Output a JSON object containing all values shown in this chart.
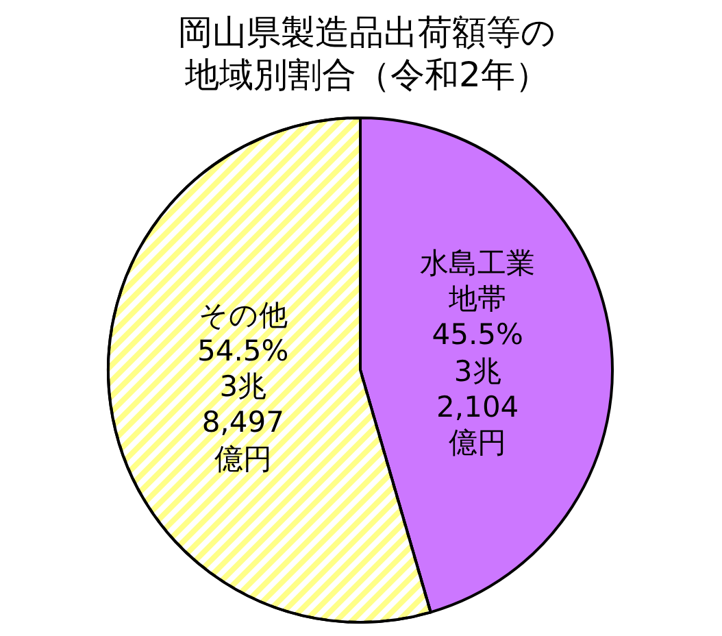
{
  "chart_data": {
    "type": "pie",
    "title": "岡山県製造品出荷額等の地域別割合（令和2年）",
    "categories": [
      "水島工業地帯",
      "その他"
    ],
    "values": [
      45.5,
      54.5
    ],
    "colors": [
      "#cc77ff",
      "#ffff88"
    ],
    "value_labels": [
      "45.5%",
      "54.5%"
    ],
    "annotations": [
      "3兆2,104億円",
      "3兆8,497億円"
    ]
  }
}
